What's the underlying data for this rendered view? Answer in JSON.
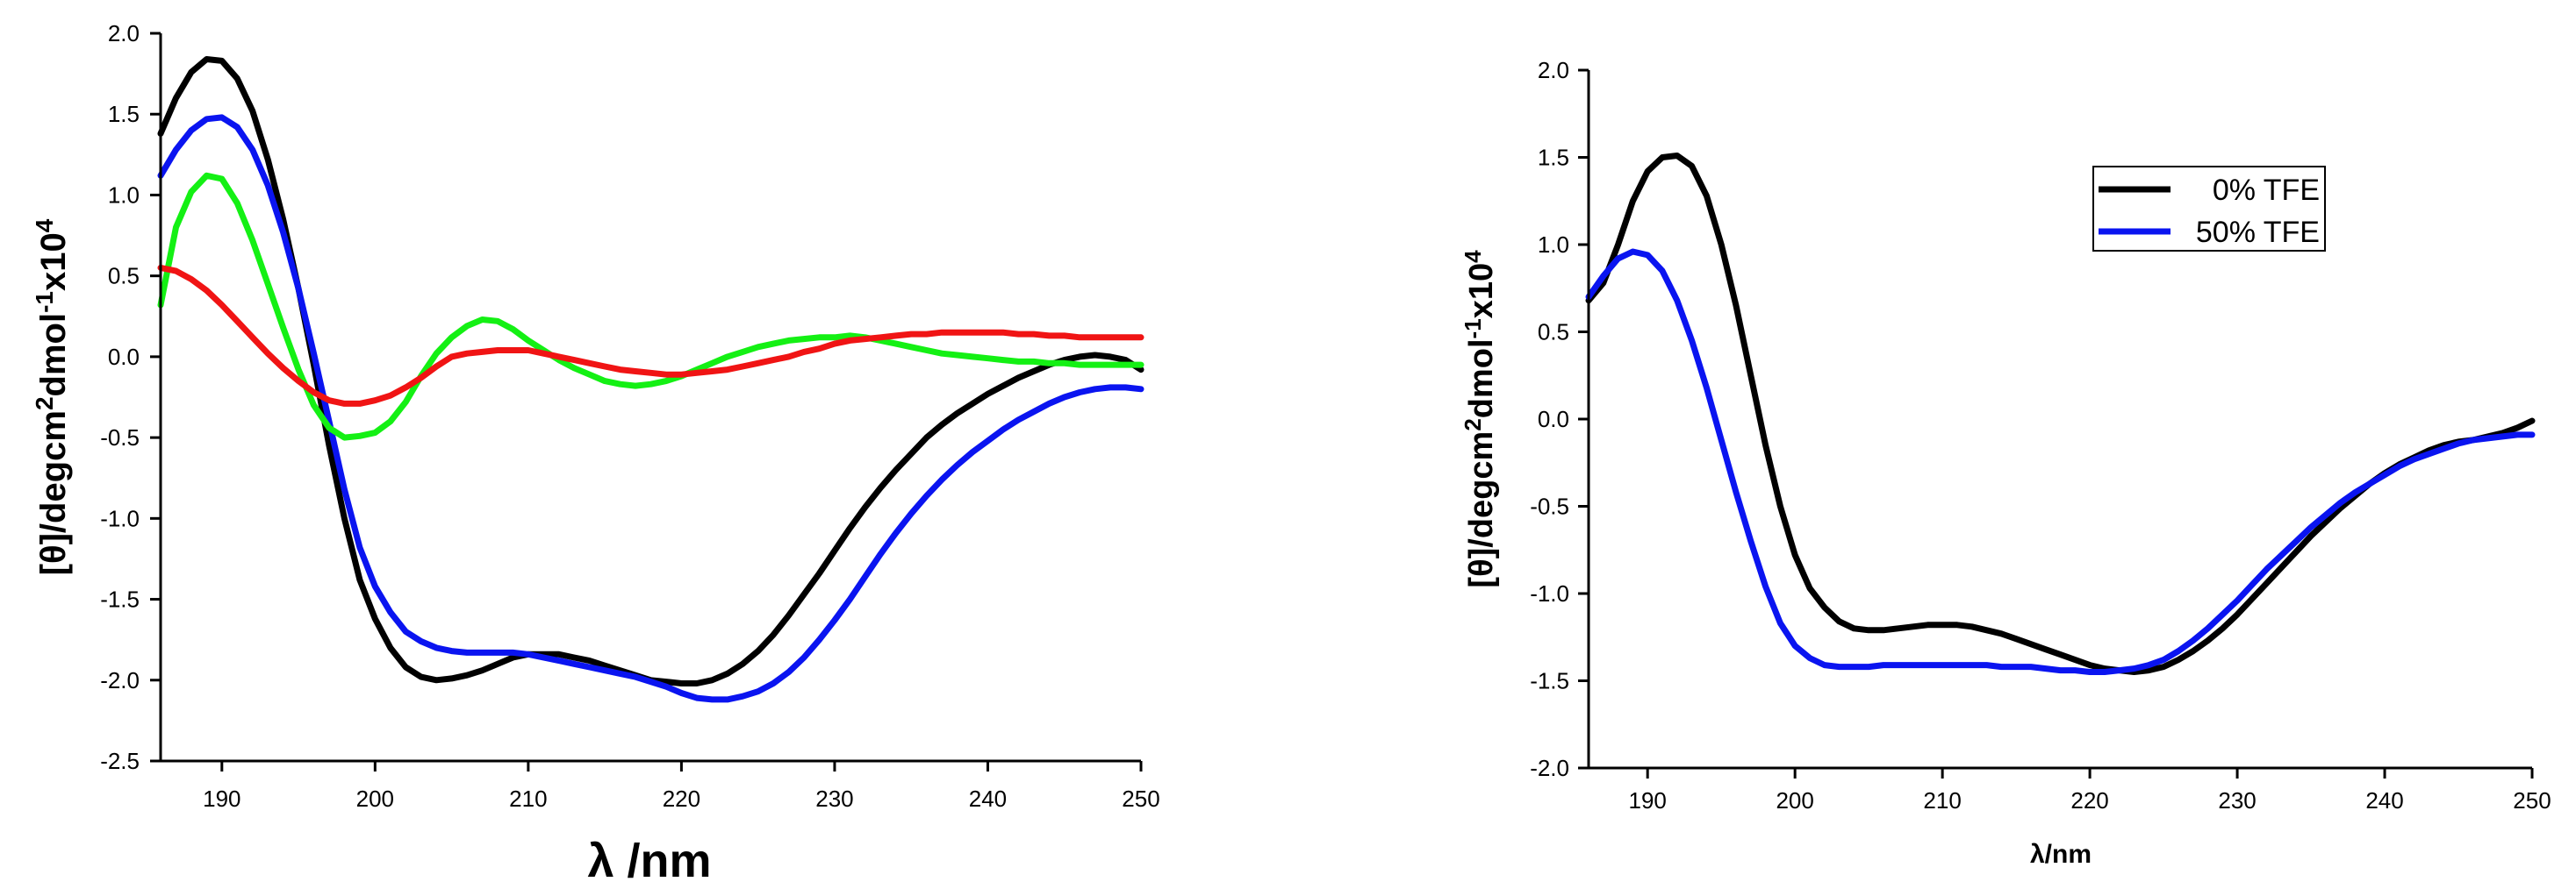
{
  "chart_data": [
    {
      "type": "line",
      "title": "",
      "xlabel": "λ /nm",
      "ylabel_parts": [
        "[θ]/degcm",
        "2",
        "dmol",
        "-1",
        "x10",
        "4"
      ],
      "xlim": [
        186,
        250
      ],
      "ylim": [
        -2.5,
        2.0
      ],
      "xticks": [
        190,
        200,
        210,
        220,
        230,
        240,
        250
      ],
      "yticks": [
        "2.0",
        "1.5",
        "1.0",
        "0.5",
        "0.0",
        "-0.5",
        "-1.0",
        "-1.5",
        "-2.0",
        "-2.5"
      ],
      "ytick_values": [
        2.0,
        1.5,
        1.0,
        0.5,
        0.0,
        -0.5,
        -1.0,
        -1.5,
        -2.0,
        -2.5
      ],
      "legend": null,
      "series": [
        {
          "name": "black",
          "color": "#000000",
          "x": [
            186,
            187,
            188,
            189,
            190,
            191,
            192,
            193,
            194,
            195,
            196,
            197,
            198,
            199,
            200,
            201,
            202,
            203,
            204,
            205,
            206,
            207,
            208,
            209,
            210,
            211,
            212,
            213,
            214,
            215,
            216,
            217,
            218,
            219,
            220,
            221,
            222,
            223,
            224,
            225,
            226,
            227,
            228,
            229,
            230,
            231,
            232,
            233,
            234,
            235,
            236,
            237,
            238,
            239,
            240,
            241,
            242,
            243,
            244,
            245,
            246,
            247,
            248,
            249,
            250
          ],
          "y": [
            1.38,
            1.6,
            1.76,
            1.84,
            1.83,
            1.72,
            1.52,
            1.22,
            0.85,
            0.42,
            -0.05,
            -0.55,
            -1.0,
            -1.38,
            -1.62,
            -1.8,
            -1.92,
            -1.98,
            -2.0,
            -1.99,
            -1.97,
            -1.94,
            -1.9,
            -1.86,
            -1.84,
            -1.84,
            -1.84,
            -1.86,
            -1.88,
            -1.91,
            -1.94,
            -1.97,
            -2.0,
            -2.01,
            -2.02,
            -2.02,
            -2.0,
            -1.96,
            -1.9,
            -1.82,
            -1.72,
            -1.6,
            -1.47,
            -1.34,
            -1.2,
            -1.06,
            -0.93,
            -0.81,
            -0.7,
            -0.6,
            -0.5,
            -0.42,
            -0.35,
            -0.29,
            -0.23,
            -0.18,
            -0.13,
            -0.09,
            -0.05,
            -0.02,
            0.0,
            0.01,
            0.0,
            -0.02,
            -0.08
          ]
        },
        {
          "name": "blue",
          "color": "#0a14f0",
          "x": [
            186,
            187,
            188,
            189,
            190,
            191,
            192,
            193,
            194,
            195,
            196,
            197,
            198,
            199,
            200,
            201,
            202,
            203,
            204,
            205,
            206,
            207,
            208,
            209,
            210,
            211,
            212,
            213,
            214,
            215,
            216,
            217,
            218,
            219,
            220,
            221,
            222,
            223,
            224,
            225,
            226,
            227,
            228,
            229,
            230,
            231,
            232,
            233,
            234,
            235,
            236,
            237,
            238,
            239,
            240,
            241,
            242,
            243,
            244,
            245,
            246,
            247,
            248,
            249,
            250
          ],
          "y": [
            1.12,
            1.28,
            1.4,
            1.47,
            1.48,
            1.42,
            1.28,
            1.06,
            0.77,
            0.42,
            0.02,
            -0.4,
            -0.82,
            -1.18,
            -1.42,
            -1.58,
            -1.7,
            -1.76,
            -1.8,
            -1.82,
            -1.83,
            -1.83,
            -1.83,
            -1.83,
            -1.84,
            -1.86,
            -1.88,
            -1.9,
            -1.92,
            -1.94,
            -1.96,
            -1.98,
            -2.01,
            -2.04,
            -2.08,
            -2.11,
            -2.12,
            -2.12,
            -2.1,
            -2.07,
            -2.02,
            -1.95,
            -1.86,
            -1.75,
            -1.63,
            -1.5,
            -1.36,
            -1.22,
            -1.09,
            -0.97,
            -0.86,
            -0.76,
            -0.67,
            -0.59,
            -0.52,
            -0.45,
            -0.39,
            -0.34,
            -0.29,
            -0.25,
            -0.22,
            -0.2,
            -0.19,
            -0.19,
            -0.2
          ]
        },
        {
          "name": "green",
          "color": "#14f014",
          "x": [
            186,
            187,
            188,
            189,
            190,
            191,
            192,
            193,
            194,
            195,
            196,
            197,
            198,
            199,
            200,
            201,
            202,
            203,
            204,
            205,
            206,
            207,
            208,
            209,
            210,
            211,
            212,
            213,
            214,
            215,
            216,
            217,
            218,
            219,
            220,
            221,
            222,
            223,
            224,
            225,
            226,
            227,
            228,
            229,
            230,
            231,
            232,
            233,
            234,
            235,
            236,
            237,
            238,
            239,
            240,
            241,
            242,
            243,
            244,
            245,
            246,
            247,
            248,
            249,
            250
          ],
          "y": [
            0.32,
            0.8,
            1.02,
            1.12,
            1.1,
            0.95,
            0.72,
            0.45,
            0.18,
            -0.08,
            -0.3,
            -0.44,
            -0.5,
            -0.49,
            -0.47,
            -0.4,
            -0.28,
            -0.12,
            0.02,
            0.12,
            0.19,
            0.23,
            0.22,
            0.17,
            0.1,
            0.04,
            -0.02,
            -0.07,
            -0.11,
            -0.15,
            -0.17,
            -0.18,
            -0.17,
            -0.15,
            -0.12,
            -0.08,
            -0.04,
            0.0,
            0.03,
            0.06,
            0.08,
            0.1,
            0.11,
            0.12,
            0.12,
            0.13,
            0.12,
            0.1,
            0.08,
            0.06,
            0.04,
            0.02,
            0.01,
            0.0,
            -0.01,
            -0.02,
            -0.03,
            -0.03,
            -0.04,
            -0.04,
            -0.05,
            -0.05,
            -0.05,
            -0.05,
            -0.05
          ]
        },
        {
          "name": "red",
          "color": "#f01414",
          "x": [
            186,
            187,
            188,
            189,
            190,
            191,
            192,
            193,
            194,
            195,
            196,
            197,
            198,
            199,
            200,
            201,
            202,
            203,
            204,
            205,
            206,
            207,
            208,
            209,
            210,
            211,
            212,
            213,
            214,
            215,
            216,
            217,
            218,
            219,
            220,
            221,
            222,
            223,
            224,
            225,
            226,
            227,
            228,
            229,
            230,
            231,
            232,
            233,
            234,
            235,
            236,
            237,
            238,
            239,
            240,
            241,
            242,
            243,
            244,
            245,
            246,
            247,
            248,
            249,
            250
          ],
          "y": [
            0.55,
            0.53,
            0.48,
            0.41,
            0.32,
            0.22,
            0.12,
            0.02,
            -0.07,
            -0.15,
            -0.22,
            -0.27,
            -0.29,
            -0.29,
            -0.27,
            -0.24,
            -0.19,
            -0.13,
            -0.06,
            0.0,
            0.02,
            0.03,
            0.04,
            0.04,
            0.04,
            0.02,
            0.0,
            -0.02,
            -0.04,
            -0.06,
            -0.08,
            -0.09,
            -0.1,
            -0.11,
            -0.11,
            -0.1,
            -0.09,
            -0.08,
            -0.06,
            -0.04,
            -0.02,
            0.0,
            0.03,
            0.05,
            0.08,
            0.1,
            0.11,
            0.12,
            0.13,
            0.14,
            0.14,
            0.15,
            0.15,
            0.15,
            0.15,
            0.15,
            0.14,
            0.14,
            0.13,
            0.13,
            0.12,
            0.12,
            0.12,
            0.12,
            0.12
          ]
        }
      ]
    },
    {
      "type": "line",
      "title": "",
      "xlabel": "λ/nm",
      "ylabel_parts": [
        "[θ]/degcm",
        "2",
        "dmol",
        "-1",
        "x10",
        "4"
      ],
      "xlim": [
        186,
        250
      ],
      "ylim": [
        -2.0,
        2.0
      ],
      "xticks": [
        190,
        200,
        210,
        220,
        230,
        240,
        250
      ],
      "yticks": [
        "2.0",
        "1.5",
        "1.0",
        "0.5",
        "0.0",
        "-0.5",
        "-1.0",
        "-1.5",
        "-2.0"
      ],
      "ytick_values": [
        2.0,
        1.5,
        1.0,
        0.5,
        0.0,
        -0.5,
        -1.0,
        -1.5,
        -2.0
      ],
      "legend": {
        "placement": "top-right",
        "entries": [
          "0% TFE",
          "50% TFE"
        ]
      },
      "series": [
        {
          "name": "0% TFE",
          "color": "#000000",
          "x": [
            186,
            187,
            188,
            189,
            190,
            191,
            192,
            193,
            194,
            195,
            196,
            197,
            198,
            199,
            200,
            201,
            202,
            203,
            204,
            205,
            206,
            207,
            208,
            209,
            210,
            211,
            212,
            213,
            214,
            215,
            216,
            217,
            218,
            219,
            220,
            221,
            222,
            223,
            224,
            225,
            226,
            227,
            228,
            229,
            230,
            231,
            232,
            233,
            234,
            235,
            236,
            237,
            238,
            239,
            240,
            241,
            242,
            243,
            244,
            245,
            246,
            247,
            248,
            249,
            250
          ],
          "y": [
            0.68,
            0.78,
            1.0,
            1.25,
            1.42,
            1.5,
            1.51,
            1.45,
            1.28,
            1.0,
            0.65,
            0.25,
            -0.15,
            -0.5,
            -0.78,
            -0.97,
            -1.08,
            -1.16,
            -1.2,
            -1.21,
            -1.21,
            -1.2,
            -1.19,
            -1.18,
            -1.18,
            -1.18,
            -1.19,
            -1.21,
            -1.23,
            -1.26,
            -1.29,
            -1.32,
            -1.35,
            -1.38,
            -1.41,
            -1.43,
            -1.44,
            -1.45,
            -1.44,
            -1.42,
            -1.38,
            -1.33,
            -1.27,
            -1.2,
            -1.12,
            -1.03,
            -0.94,
            -0.85,
            -0.76,
            -0.67,
            -0.59,
            -0.51,
            -0.44,
            -0.37,
            -0.31,
            -0.26,
            -0.22,
            -0.18,
            -0.15,
            -0.13,
            -0.12,
            -0.1,
            -0.08,
            -0.05,
            -0.01
          ]
        },
        {
          "name": "50% TFE",
          "color": "#0a14f0",
          "x": [
            186,
            187,
            188,
            189,
            190,
            191,
            192,
            193,
            194,
            195,
            196,
            197,
            198,
            199,
            200,
            201,
            202,
            203,
            204,
            205,
            206,
            207,
            208,
            209,
            210,
            211,
            212,
            213,
            214,
            215,
            216,
            217,
            218,
            219,
            220,
            221,
            222,
            223,
            224,
            225,
            226,
            227,
            228,
            229,
            230,
            231,
            232,
            233,
            234,
            235,
            236,
            237,
            238,
            239,
            240,
            241,
            242,
            243,
            244,
            245,
            246,
            247,
            248,
            249,
            250
          ],
          "y": [
            0.7,
            0.82,
            0.92,
            0.96,
            0.94,
            0.85,
            0.68,
            0.45,
            0.18,
            -0.12,
            -0.42,
            -0.7,
            -0.96,
            -1.17,
            -1.3,
            -1.37,
            -1.41,
            -1.42,
            -1.42,
            -1.42,
            -1.41,
            -1.41,
            -1.41,
            -1.41,
            -1.41,
            -1.41,
            -1.41,
            -1.41,
            -1.42,
            -1.42,
            -1.42,
            -1.43,
            -1.44,
            -1.44,
            -1.45,
            -1.45,
            -1.44,
            -1.43,
            -1.41,
            -1.38,
            -1.33,
            -1.27,
            -1.2,
            -1.12,
            -1.04,
            -0.95,
            -0.86,
            -0.78,
            -0.7,
            -0.62,
            -0.55,
            -0.48,
            -0.42,
            -0.37,
            -0.32,
            -0.27,
            -0.23,
            -0.2,
            -0.17,
            -0.14,
            -0.12,
            -0.11,
            -0.1,
            -0.09,
            -0.09
          ]
        }
      ]
    }
  ]
}
